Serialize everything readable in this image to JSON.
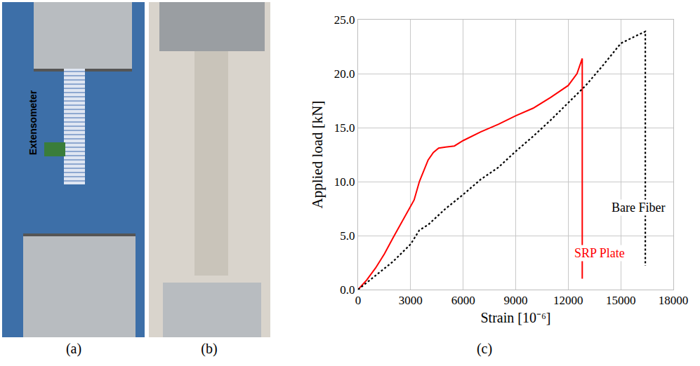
{
  "panel_labels": [
    "(a)",
    "(b)",
    "(c)"
  ],
  "photo_a_text": "Extensometer",
  "chart_data": {
    "type": "line",
    "x_label": "Strain [10⁻⁶]",
    "y_label": "Applied load [kN]",
    "xlim": [
      0,
      18000
    ],
    "xticks": [
      0,
      3000,
      6000,
      9000,
      12000,
      15000,
      18000
    ],
    "ylim": [
      0,
      25
    ],
    "yticks": [
      {
        "value": 0,
        "label": "0.0"
      },
      {
        "value": 5,
        "label": "5.0"
      },
      {
        "value": 10,
        "label": "10.0"
      },
      {
        "value": 15,
        "label": "15.0"
      },
      {
        "value": 20,
        "label": "20.0"
      },
      {
        "value": 25,
        "label": "25.0"
      }
    ],
    "grid": true,
    "series": [
      {
        "name": "SRP Plate",
        "color": "#ff0000",
        "line_style": "solid",
        "x": [
          0,
          500,
          1000,
          1500,
          2000,
          2500,
          3000,
          3200,
          3500,
          3800,
          4000,
          4300,
          4600,
          5000,
          5500,
          6000,
          7000,
          8000,
          9000,
          10000,
          11000,
          12000,
          12500,
          12800,
          12800
        ],
        "values": [
          0,
          0.9,
          2.0,
          3.3,
          4.8,
          6.3,
          7.8,
          8.3,
          10.0,
          11.2,
          12.0,
          12.7,
          13.1,
          13.2,
          13.3,
          13.8,
          14.6,
          15.3,
          16.1,
          16.8,
          17.8,
          18.9,
          20.0,
          21.4,
          1.0
        ],
        "label_x": 13800,
        "label_y": 3.4
      },
      {
        "name": "Bare Fiber",
        "color": "#000000",
        "line_style": "dot",
        "x": [
          0,
          1000,
          2000,
          3000,
          3500,
          4000,
          5000,
          6000,
          7000,
          8000,
          9000,
          10000,
          11000,
          12000,
          13000,
          14000,
          15000,
          16000,
          16400,
          16400
        ],
        "values": [
          0,
          1.3,
          2.6,
          4.2,
          5.5,
          6.0,
          7.5,
          8.8,
          10.2,
          11.3,
          12.8,
          14.2,
          15.7,
          17.3,
          18.9,
          20.8,
          22.8,
          23.6,
          23.9,
          2.2
        ],
        "label_x": 16000,
        "label_y": 7.6
      }
    ]
  }
}
